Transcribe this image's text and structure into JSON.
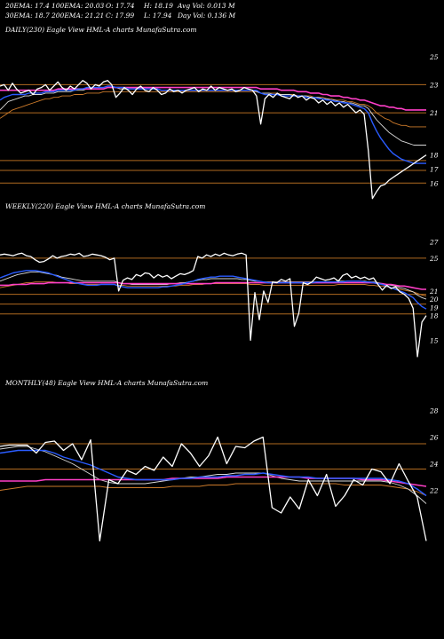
{
  "header": {
    "row1": [
      "20EMA: 17.4",
      "100EMA: 20.03",
      "O: 17.74",
      "H: 18.19",
      "Avg Vol: 0.013  M"
    ],
    "row2": [
      "30EMA: 18.7",
      "200EMA: 21.21",
      "C: 17.99",
      "L: 17.94",
      "Day Vol: 0.136  M"
    ]
  },
  "colors": {
    "background": "#000000",
    "price": "#ffffff",
    "ema20": "#2a5cff",
    "ema_pink": "#ff3fc8",
    "ema_white_thin": "#d8d8d8",
    "ema_orange": "#cc7a2a",
    "level_line": "#b06a20"
  },
  "chart_data": [
    {
      "type": "line",
      "title": "DAILY(230) Eagle  View  HML-A charts MunafaSutra.com",
      "ylim": [
        14.5,
        26.5
      ],
      "y_ticks": [
        25,
        23,
        21,
        18,
        17,
        16
      ],
      "levels": [
        23,
        21,
        17.6,
        16.9,
        16
      ],
      "price": [
        22.9,
        23.0,
        22.6,
        23.1,
        22.7,
        22.4,
        22.5,
        22.6,
        22.3,
        22.7,
        22.8,
        23.0,
        22.6,
        22.9,
        23.2,
        22.8,
        22.6,
        22.9,
        22.7,
        23.0,
        23.3,
        23.1,
        22.7,
        23.0,
        22.9,
        23.2,
        23.3,
        23.0,
        22.1,
        22.4,
        22.8,
        22.6,
        22.3,
        22.7,
        22.9,
        22.6,
        22.5,
        22.8,
        22.6,
        22.3,
        22.4,
        22.7,
        22.5,
        22.6,
        22.4,
        22.6,
        22.7,
        22.8,
        22.5,
        22.7,
        22.6,
        22.9,
        22.6,
        22.8,
        22.7,
        22.6,
        22.7,
        22.5,
        22.6,
        22.8,
        22.7,
        22.6,
        22.2,
        20.2,
        22.0,
        22.3,
        22.1,
        22.4,
        22.2,
        22.1,
        22.0,
        22.3,
        22.1,
        22.2,
        21.9,
        22.1,
        22.0,
        21.7,
        21.9,
        21.6,
        21.8,
        21.5,
        21.7,
        21.4,
        21.6,
        21.3,
        21.0,
        21.2,
        20.9,
        18.3,
        14.9,
        15.4,
        15.8,
        15.9,
        16.2,
        16.4,
        16.6,
        16.8,
        17.0,
        17.2,
        17.4,
        17.6,
        17.8,
        18.0
      ],
      "ema20": [
        21.9,
        22.1,
        22.2,
        22.3,
        22.3,
        22.3,
        22.3,
        22.4,
        22.4,
        22.4,
        22.4,
        22.5,
        22.5,
        22.5,
        22.6,
        22.6,
        22.6,
        22.6,
        22.6,
        22.7,
        22.7,
        22.8,
        22.8,
        22.8,
        22.8,
        22.8,
        22.9,
        22.9,
        22.8,
        22.8,
        22.8,
        22.7,
        22.7,
        22.7,
        22.7,
        22.7,
        22.7,
        22.7,
        22.7,
        22.6,
        22.6,
        22.6,
        22.6,
        22.6,
        22.6,
        22.6,
        22.6,
        22.6,
        22.6,
        22.6,
        22.6,
        22.6,
        22.6,
        22.6,
        22.6,
        22.6,
        22.6,
        22.6,
        22.6,
        22.6,
        22.6,
        22.6,
        22.6,
        22.4,
        22.3,
        22.3,
        22.3,
        22.3,
        22.2,
        22.2,
        22.2,
        22.2,
        22.2,
        22.2,
        22.1,
        22.1,
        22.1,
        22.0,
        22.0,
        21.9,
        21.9,
        21.8,
        21.8,
        21.7,
        21.7,
        21.6,
        21.5,
        21.4,
        21.3,
        21.0,
        20.3,
        19.7,
        19.2,
        18.8,
        18.4,
        18.1,
        17.9,
        17.7,
        17.6,
        17.5,
        17.4,
        17.4,
        17.4,
        17.4
      ],
      "ema_pink": [
        22.6,
        22.6,
        22.6,
        22.6,
        22.6,
        22.6,
        22.6,
        22.6,
        22.6,
        22.6,
        22.6,
        22.6,
        22.6,
        22.6,
        22.7,
        22.7,
        22.7,
        22.7,
        22.7,
        22.7,
        22.7,
        22.7,
        22.7,
        22.7,
        22.7,
        22.7,
        22.8,
        22.8,
        22.8,
        22.8,
        22.8,
        22.8,
        22.8,
        22.8,
        22.8,
        22.8,
        22.8,
        22.8,
        22.8,
        22.8,
        22.8,
        22.8,
        22.8,
        22.8,
        22.8,
        22.8,
        22.8,
        22.8,
        22.8,
        22.8,
        22.8,
        22.8,
        22.8,
        22.8,
        22.8,
        22.8,
        22.8,
        22.8,
        22.8,
        22.8,
        22.8,
        22.8,
        22.8,
        22.7,
        22.7,
        22.7,
        22.7,
        22.7,
        22.6,
        22.6,
        22.6,
        22.6,
        22.5,
        22.5,
        22.5,
        22.4,
        22.4,
        22.4,
        22.3,
        22.3,
        22.2,
        22.2,
        22.2,
        22.1,
        22.1,
        22.0,
        22.0,
        21.9,
        21.9,
        21.8,
        21.7,
        21.6,
        21.5,
        21.5,
        21.4,
        21.4,
        21.3,
        21.3,
        21.2,
        21.2,
        21.2,
        21.2,
        21.2,
        21.2
      ],
      "ema_white_thin": [
        21.2,
        21.5,
        21.8,
        21.9,
        22.0,
        22.1,
        22.2,
        22.2,
        22.3,
        22.3,
        22.3,
        22.4,
        22.4,
        22.4,
        22.5,
        22.5,
        22.5,
        22.5,
        22.6,
        22.6,
        22.6,
        22.7,
        22.7,
        22.7,
        22.7,
        22.7,
        22.8,
        22.8,
        22.8,
        22.7,
        22.7,
        22.7,
        22.7,
        22.7,
        22.7,
        22.7,
        22.7,
        22.7,
        22.7,
        22.6,
        22.6,
        22.6,
        22.6,
        22.6,
        22.6,
        22.6,
        22.6,
        22.6,
        22.6,
        22.6,
        22.6,
        22.6,
        22.6,
        22.6,
        22.6,
        22.6,
        22.6,
        22.6,
        22.6,
        22.6,
        22.6,
        22.6,
        22.5,
        22.4,
        22.4,
        22.4,
        22.3,
        22.3,
        22.3,
        22.3,
        22.3,
        22.2,
        22.2,
        22.2,
        22.2,
        22.1,
        22.1,
        22.1,
        22.0,
        22.0,
        21.9,
        21.9,
        21.8,
        21.8,
        21.7,
        21.7,
        21.6,
        21.5,
        21.5,
        21.3,
        20.9,
        20.5,
        20.2,
        19.9,
        19.6,
        19.4,
        19.2,
        19.0,
        18.9,
        18.8,
        18.7,
        18.7,
        18.7,
        18.7
      ],
      "ema_orange": [
        20.6,
        20.8,
        21.0,
        21.2,
        21.3,
        21.4,
        21.5,
        21.6,
        21.7,
        21.8,
        21.9,
        22.0,
        22.0,
        22.1,
        22.1,
        22.2,
        22.2,
        22.2,
        22.3,
        22.3,
        22.3,
        22.4,
        22.4,
        22.4,
        22.4,
        22.5,
        22.5,
        22.5,
        22.5,
        22.5,
        22.5,
        22.5,
        22.5,
        22.5,
        22.5,
        22.5,
        22.5,
        22.5,
        22.5,
        22.5,
        22.5,
        22.5,
        22.5,
        22.5,
        22.5,
        22.5,
        22.5,
        22.5,
        22.5,
        22.5,
        22.5,
        22.5,
        22.5,
        22.5,
        22.5,
        22.5,
        22.5,
        22.5,
        22.5,
        22.5,
        22.5,
        22.5,
        22.5,
        22.4,
        22.4,
        22.4,
        22.4,
        22.4,
        22.3,
        22.3,
        22.3,
        22.3,
        22.2,
        22.2,
        22.2,
        22.2,
        22.1,
        22.1,
        22.1,
        22.0,
        22.0,
        21.9,
        21.9,
        21.9,
        21.8,
        21.8,
        21.7,
        21.6,
        21.6,
        21.5,
        21.3,
        21.0,
        20.8,
        20.6,
        20.5,
        20.3,
        20.2,
        20.1,
        20.1,
        20.0,
        20.0,
        20.0,
        20.0,
        20.0
      ]
    },
    {
      "type": "line",
      "title": "WEEKLY(220) Eagle  View  HML-A charts MunafaSutra.com",
      "ylim": [
        10.5,
        30.5
      ],
      "y_ticks": [
        27,
        25,
        21,
        20,
        19,
        18,
        15
      ],
      "levels": [
        25,
        20.6,
        19.4,
        18.2
      ],
      "price": [
        25.4,
        25.5,
        25.4,
        25.3,
        25.5,
        25.6,
        25.3,
        25.2,
        24.8,
        24.5,
        24.6,
        24.9,
        25.3,
        25.0,
        25.2,
        25.3,
        25.5,
        25.4,
        25.6,
        25.2,
        25.3,
        25.5,
        25.4,
        25.3,
        25.1,
        24.8,
        25.0,
        21.0,
        22.3,
        22.6,
        22.4,
        23.0,
        22.8,
        23.2,
        23.1,
        22.6,
        23.0,
        22.7,
        22.9,
        22.5,
        22.8,
        23.1,
        23.0,
        23.2,
        23.5,
        25.2,
        25.0,
        25.4,
        25.2,
        25.5,
        25.3,
        25.6,
        25.4,
        25.3,
        25.5,
        25.6,
        25.4,
        15.0,
        20.8,
        17.5,
        21.0,
        19.6,
        22.1,
        22.0,
        22.4,
        22.2,
        22.5,
        16.7,
        18.3,
        22.0,
        21.8,
        22.1,
        22.7,
        22.5,
        22.3,
        22.4,
        22.6,
        22.2,
        22.9,
        23.1,
        22.6,
        22.8,
        22.5,
        22.7,
        22.4,
        22.6,
        21.8,
        21.1,
        21.7,
        21.3,
        21.5,
        20.9,
        20.6,
        20.1,
        18.9,
        13.0,
        17.2,
        18.0
      ],
      "ema20": [
        22.6,
        22.8,
        23.0,
        23.2,
        23.3,
        23.4,
        23.5,
        23.5,
        23.5,
        23.4,
        23.3,
        23.2,
        23.0,
        22.8,
        22.6,
        22.4,
        22.2,
        22.0,
        21.9,
        21.8,
        21.7,
        21.7,
        21.7,
        21.8,
        21.8,
        21.8,
        21.8,
        21.6,
        21.5,
        21.4,
        21.4,
        21.4,
        21.4,
        21.4,
        21.4,
        21.4,
        21.4,
        21.5,
        21.5,
        21.6,
        21.7,
        21.8,
        21.9,
        22.1,
        22.2,
        22.4,
        22.5,
        22.6,
        22.7,
        22.7,
        22.8,
        22.8,
        22.8,
        22.8,
        22.7,
        22.6,
        22.5,
        22.4,
        22.3,
        22.2,
        22.1,
        22.0,
        22.0,
        22.0,
        22.0,
        22.0,
        22.0,
        22.0,
        22.0,
        22.0,
        22.0,
        22.0,
        22.1,
        22.1,
        22.1,
        22.1,
        22.1,
        22.1,
        22.1,
        22.2,
        22.2,
        22.2,
        22.2,
        22.1,
        22.1,
        22.0,
        21.9,
        21.8,
        21.6,
        21.4,
        21.2,
        21.0,
        20.8,
        20.5,
        20.2,
        19.6,
        19.1,
        18.8
      ],
      "ema_pink": [
        21.7,
        21.7,
        21.7,
        21.8,
        21.8,
        21.8,
        21.8,
        21.9,
        21.9,
        21.9,
        21.9,
        22.0,
        22.0,
        22.0,
        22.0,
        22.0,
        22.0,
        22.0,
        22.0,
        22.0,
        22.0,
        22.0,
        22.0,
        22.0,
        22.0,
        22.0,
        22.0,
        22.0,
        21.9,
        21.9,
        21.9,
        21.9,
        21.9,
        21.9,
        21.9,
        21.9,
        21.9,
        21.9,
        21.9,
        21.9,
        21.9,
        21.9,
        21.9,
        21.9,
        21.9,
        21.9,
        21.9,
        21.9,
        21.9,
        22.0,
        22.0,
        22.0,
        22.0,
        22.0,
        22.0,
        22.0,
        22.0,
        22.0,
        22.0,
        22.0,
        22.0,
        22.0,
        22.0,
        22.0,
        22.0,
        22.0,
        22.0,
        22.0,
        22.0,
        22.0,
        22.0,
        22.0,
        22.0,
        22.0,
        22.0,
        22.0,
        22.0,
        22.0,
        22.0,
        22.0,
        22.0,
        22.0,
        22.0,
        22.0,
        22.0,
        22.0,
        21.9,
        21.9,
        21.8,
        21.8,
        21.7,
        21.6,
        21.6,
        21.5,
        21.4,
        21.3,
        21.2,
        21.2
      ],
      "ema_white_thin": [
        22.2,
        22.4,
        22.6,
        22.8,
        23.0,
        23.1,
        23.2,
        23.3,
        23.3,
        23.3,
        23.2,
        23.1,
        23.0,
        22.9,
        22.7,
        22.6,
        22.5,
        22.4,
        22.3,
        22.2,
        22.2,
        22.2,
        22.2,
        22.2,
        22.2,
        22.2,
        22.2,
        22.0,
        21.9,
        21.9,
        21.8,
        21.8,
        21.8,
        21.8,
        21.8,
        21.8,
        21.8,
        21.8,
        21.8,
        21.9,
        21.9,
        22.0,
        22.0,
        22.1,
        22.2,
        22.3,
        22.4,
        22.4,
        22.5,
        22.5,
        22.5,
        22.5,
        22.5,
        22.5,
        22.5,
        22.4,
        22.4,
        22.3,
        22.2,
        22.2,
        22.1,
        22.1,
        22.1,
        22.1,
        22.1,
        22.1,
        22.1,
        22.1,
        22.1,
        22.1,
        22.1,
        22.1,
        22.1,
        22.1,
        22.1,
        22.1,
        22.1,
        22.2,
        22.2,
        22.2,
        22.2,
        22.2,
        22.2,
        22.2,
        22.1,
        22.1,
        22.0,
        21.9,
        21.8,
        21.7,
        21.6,
        21.4,
        21.3,
        21.1,
        20.9,
        20.5,
        20.2,
        20.0
      ],
      "ema_orange": [
        21.4,
        21.5,
        21.6,
        21.7,
        21.8,
        21.9,
        22.0,
        22.0,
        22.1,
        22.1,
        22.1,
        22.1,
        22.1,
        22.0,
        22.0,
        22.0,
        21.9,
        21.9,
        21.9,
        21.8,
        21.8,
        21.8,
        21.8,
        21.8,
        21.8,
        21.8,
        21.8,
        21.7,
        21.7,
        21.6,
        21.6,
        21.6,
        21.6,
        21.6,
        21.6,
        21.6,
        21.6,
        21.6,
        21.6,
        21.6,
        21.6,
        21.7,
        21.7,
        21.7,
        21.8,
        21.8,
        21.8,
        21.9,
        21.9,
        21.9,
        21.9,
        21.9,
        21.9,
        21.9,
        21.9,
        21.9,
        21.9,
        21.8,
        21.8,
        21.8,
        21.7,
        21.7,
        21.7,
        21.7,
        21.7,
        21.7,
        21.7,
        21.7,
        21.7,
        21.7,
        21.7,
        21.7,
        21.7,
        21.7,
        21.7,
        21.7,
        21.7,
        21.8,
        21.8,
        21.8,
        21.8,
        21.8,
        21.8,
        21.8,
        21.7,
        21.7,
        21.6,
        21.6,
        21.5,
        21.4,
        21.3,
        21.2,
        21.1,
        21.0,
        20.9,
        20.7,
        20.5,
        20.4
      ]
    },
    {
      "type": "line",
      "title": "MONTHLY(48) Eagle  View  HML-A charts MunafaSutra.com",
      "ylim": [
        16.5,
        29.5
      ],
      "y_ticks": [
        28,
        26,
        24,
        22
      ],
      "levels": [
        25.5,
        23.6
      ],
      "price": [
        25.3,
        25.4,
        25.4,
        25.4,
        24.8,
        25.6,
        25.7,
        25.0,
        25.5,
        24.3,
        25.8,
        18.2,
        22.8,
        22.5,
        23.5,
        23.2,
        23.8,
        23.5,
        24.5,
        23.8,
        25.5,
        24.8,
        23.8,
        24.6,
        26.0,
        24.0,
        25.3,
        25.2,
        25.7,
        26.0,
        20.7,
        20.3,
        21.5,
        20.6,
        22.8,
        21.6,
        23.2,
        20.8,
        21.6,
        22.8,
        22.4,
        23.6,
        23.4,
        22.5,
        24.0,
        22.7,
        21.5,
        18.2
      ],
      "ema20": [
        24.8,
        24.9,
        25.0,
        25.0,
        25.0,
        25.0,
        24.8,
        24.5,
        24.3,
        24.1,
        23.9,
        23.6,
        23.3,
        23.0,
        22.9,
        22.8,
        22.8,
        22.8,
        22.8,
        22.8,
        22.9,
        22.9,
        23.0,
        23.0,
        23.0,
        23.1,
        23.1,
        23.2,
        23.2,
        23.3,
        23.2,
        23.1,
        23.0,
        23.0,
        23.0,
        22.9,
        22.9,
        22.9,
        22.9,
        22.9,
        22.9,
        22.9,
        22.9,
        22.8,
        22.7,
        22.5,
        22.1,
        21.6
      ],
      "ema_pink": [
        22.7,
        22.7,
        22.7,
        22.7,
        22.7,
        22.8,
        22.8,
        22.8,
        22.8,
        22.8,
        22.8,
        22.8,
        22.8,
        22.8,
        22.8,
        22.8,
        22.8,
        22.8,
        22.8,
        22.9,
        22.9,
        22.9,
        22.9,
        22.9,
        22.9,
        23.0,
        23.0,
        23.0,
        23.0,
        23.0,
        23.0,
        23.0,
        23.0,
        23.0,
        22.9,
        22.9,
        22.9,
        22.9,
        22.9,
        22.9,
        22.8,
        22.8,
        22.8,
        22.7,
        22.6,
        22.5,
        22.4,
        22.3
      ],
      "ema_white_thin": [
        25.1,
        25.2,
        25.3,
        25.3,
        25.1,
        24.9,
        24.6,
        24.3,
        24.0,
        23.6,
        23.2,
        22.8,
        22.6,
        22.5,
        22.5,
        22.5,
        22.5,
        22.6,
        22.7,
        22.8,
        22.9,
        23.0,
        23.0,
        23.1,
        23.2,
        23.2,
        23.3,
        23.3,
        23.3,
        23.3,
        23.1,
        22.9,
        22.8,
        22.7,
        22.7,
        22.7,
        22.7,
        22.7,
        22.7,
        22.7,
        22.7,
        22.7,
        22.7,
        22.6,
        22.4,
        22.1,
        21.6,
        21.0
      ],
      "ema_orange": [
        22.0,
        22.1,
        22.2,
        22.3,
        22.3,
        22.3,
        22.3,
        22.3,
        22.3,
        22.3,
        22.3,
        22.3,
        22.2,
        22.2,
        22.2,
        22.2,
        22.2,
        22.2,
        22.2,
        22.3,
        22.3,
        22.3,
        22.3,
        22.4,
        22.4,
        22.4,
        22.5,
        22.5,
        22.5,
        22.5,
        22.5,
        22.5,
        22.5,
        22.5,
        22.5,
        22.5,
        22.5,
        22.5,
        22.4,
        22.4,
        22.4,
        22.4,
        22.4,
        22.3,
        22.2,
        22.1,
        21.9,
        21.6
      ]
    }
  ]
}
